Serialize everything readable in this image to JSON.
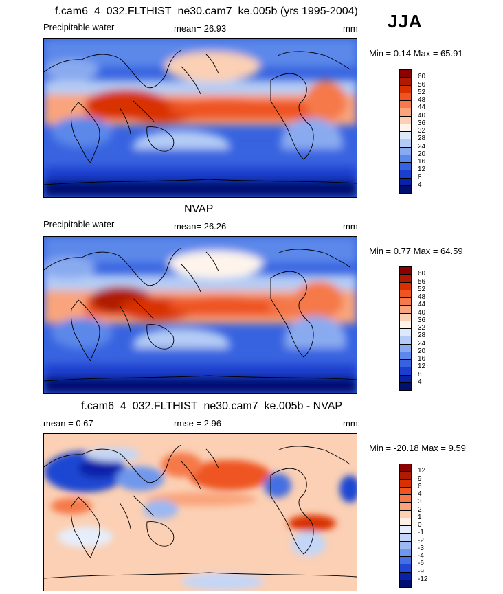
{
  "season": "JJA",
  "panels": [
    {
      "title": "f.cam6_4_032.FLTHIST_ne30.cam7_ke.005b (yrs 1995-2004)",
      "left_label": "Precipitable water",
      "center_label": "mean=  26.93",
      "units": "mm",
      "minmax": "Min =   0.14 Max =  65.91",
      "levels": [
        "60",
        "56",
        "52",
        "48",
        "44",
        "40",
        "36",
        "32",
        "28",
        "24",
        "20",
        "16",
        "12",
        "8",
        "4"
      ],
      "colors": [
        "#8b0000",
        "#b01a00",
        "#d83000",
        "#ee5520",
        "#f5794a",
        "#f9a47c",
        "#fbd0b4",
        "#fef4ec",
        "#dde8fb",
        "#b4ccf5",
        "#8aaaf0",
        "#5b88ea",
        "#3763e0",
        "#1a3fd0",
        "#0a22a8",
        "#001070"
      ]
    },
    {
      "title": "NVAP",
      "left_label": "Precipitable water",
      "center_label": "mean=  26.26",
      "units": "mm",
      "minmax": "Min =   0.77 Max =  64.59",
      "levels": [
        "60",
        "56",
        "52",
        "48",
        "44",
        "40",
        "36",
        "32",
        "28",
        "24",
        "20",
        "16",
        "12",
        "8",
        "4"
      ],
      "colors": [
        "#8b0000",
        "#b01a00",
        "#d83000",
        "#ee5520",
        "#f5794a",
        "#f9a47c",
        "#fbd0b4",
        "#fef4ec",
        "#dde8fb",
        "#b4ccf5",
        "#8aaaf0",
        "#5b88ea",
        "#3763e0",
        "#1a3fd0",
        "#0a22a8",
        "#001070"
      ]
    },
    {
      "title": "f.cam6_4_032.FLTHIST_ne30.cam7_ke.005b - NVAP",
      "left_label": "mean =   0.67",
      "center_label": "rmse =   2.96",
      "units": "mm",
      "minmax": "Min = -20.18 Max =   9.59",
      "levels": [
        "12",
        "9",
        "6",
        "4",
        "3",
        "2",
        "1",
        "0",
        "-1",
        "-2",
        "-3",
        "-4",
        "-6",
        "-9",
        "-12"
      ],
      "colors": [
        "#8b0000",
        "#b01a00",
        "#d83000",
        "#ee5520",
        "#f5794a",
        "#f9a47c",
        "#fbd0b4",
        "#fef0e4",
        "#e6eefc",
        "#c3d6f7",
        "#9bb8f2",
        "#6f97ec",
        "#4470e2",
        "#1f47d2",
        "#0a22a8",
        "#001070"
      ]
    }
  ]
}
